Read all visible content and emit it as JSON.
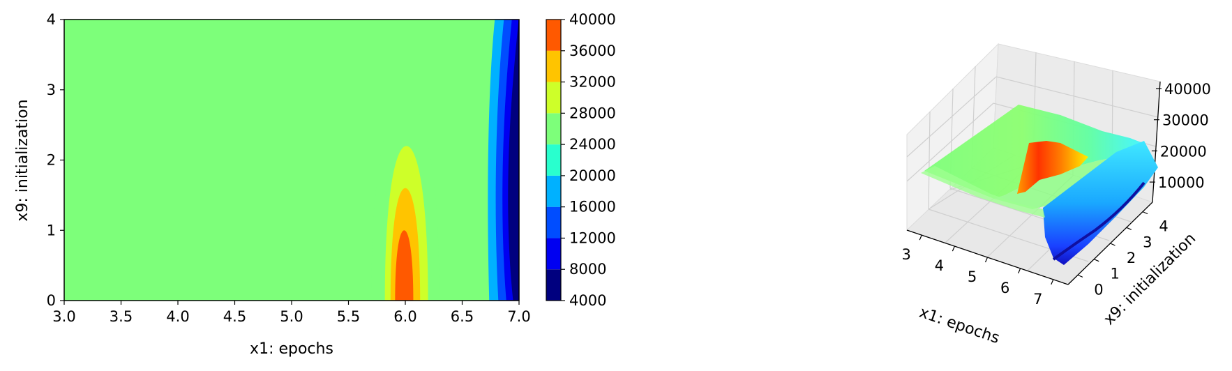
{
  "chart_data": [
    {
      "type": "contour",
      "title": "",
      "xlabel": "x1: epochs",
      "ylabel": "x9: initialization",
      "xlim": [
        3.0,
        7.0
      ],
      "ylim": [
        0,
        4
      ],
      "xticks": [
        "3.0",
        "3.5",
        "4.0",
        "4.5",
        "5.0",
        "5.5",
        "6.0",
        "6.5",
        "7.0"
      ],
      "yticks": [
        "0",
        "1",
        "2",
        "3",
        "4"
      ],
      "colorbar": {
        "levels": [
          4000,
          8000,
          12000,
          16000,
          20000,
          24000,
          28000,
          32000,
          36000,
          40000
        ],
        "tick_labels": [
          "4000",
          "8000",
          "12000",
          "16000",
          "20000",
          "24000",
          "28000",
          "32000",
          "36000",
          "40000"
        ],
        "colors": [
          "#00007f",
          "#0000f1",
          "#004dff",
          "#00b1ff",
          "#29ffce",
          "#7dff7a",
          "#ceff29",
          "#ffc400",
          "#ff5900",
          "#c10000"
        ]
      },
      "background_level_color": "#7dff7a",
      "regions": [
        {
          "level_range": [
            24000,
            28000
          ],
          "x_range": [
            5.7,
            6.3
          ],
          "y_top": 2.87
        },
        {
          "level_range": [
            28000,
            32000
          ],
          "x_range": [
            5.82,
            6.2
          ],
          "y_top": 2.2
        },
        {
          "level_range": [
            32000,
            36000
          ],
          "x_range": [
            5.87,
            6.13
          ],
          "y_top": 1.6
        },
        {
          "level_range": [
            36000,
            40000
          ],
          "x_range": [
            5.91,
            6.07
          ],
          "y_top": 1.0
        },
        {
          "level_range": [
            16000,
            20000
          ],
          "x_range": [
            6.75,
            7.0
          ]
        },
        {
          "level_range": [
            12000,
            16000
          ],
          "x_range": [
            6.83,
            7.0
          ]
        },
        {
          "level_range": [
            8000,
            12000
          ],
          "x_range": [
            6.9,
            7.0
          ]
        },
        {
          "level_range": [
            4000,
            8000
          ],
          "x_range": [
            6.96,
            7.0
          ]
        }
      ]
    },
    {
      "type": "surface",
      "title": "",
      "xlabel": "x1: epochs",
      "ylabel": "x9: initialization",
      "xticks": [
        "3",
        "4",
        "5",
        "6",
        "7"
      ],
      "yticks": [
        "0",
        "1",
        "2",
        "3",
        "4"
      ],
      "zticks": [
        "10000",
        "20000",
        "30000",
        "40000"
      ],
      "zlim": [
        4000,
        40000
      ],
      "colormap": "jet"
    }
  ]
}
